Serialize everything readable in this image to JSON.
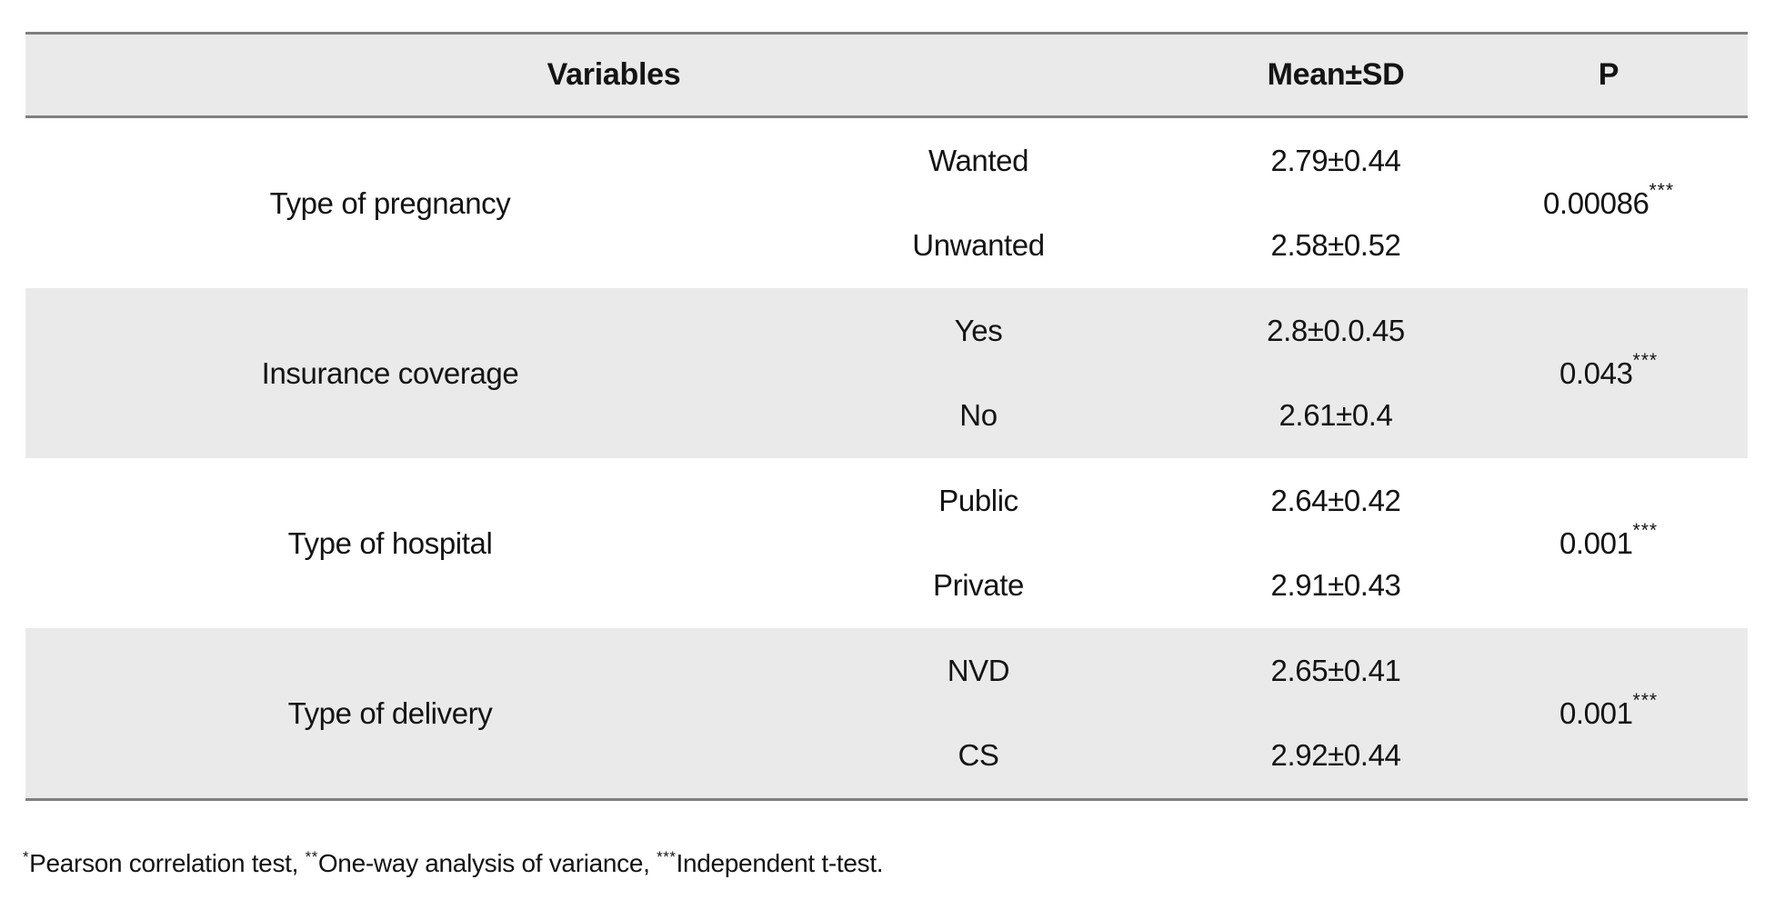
{
  "table": {
    "headers": {
      "variables": "Variables",
      "mean_sd": "Mean±SD",
      "p": "P"
    },
    "groups": [
      {
        "variable": "Type of pregnancy",
        "rows": [
          {
            "category": "Wanted",
            "mean_sd": "2.79±0.44"
          },
          {
            "category": "Unwanted",
            "mean_sd": "2.58±0.52"
          }
        ],
        "p_value": "0.00086",
        "p_sig": "***"
      },
      {
        "variable": "Insurance coverage",
        "rows": [
          {
            "category": "Yes",
            "mean_sd": "2.8±0.0.45"
          },
          {
            "category": "No",
            "mean_sd": "2.61±0.4"
          }
        ],
        "p_value": "0.043",
        "p_sig": "***"
      },
      {
        "variable": "Type of hospital",
        "rows": [
          {
            "category": "Public",
            "mean_sd": "2.64±0.42"
          },
          {
            "category": "Private",
            "mean_sd": "2.91±0.43"
          }
        ],
        "p_value": "0.001",
        "p_sig": "***"
      },
      {
        "variable": "Type of delivery",
        "rows": [
          {
            "category": "NVD",
            "mean_sd": "2.65±0.41"
          },
          {
            "category": "CS",
            "mean_sd": "2.92±0.44"
          }
        ],
        "p_value": "0.001",
        "p_sig": "***"
      }
    ]
  },
  "footnote": {
    "segments": [
      {
        "sup": "*",
        "text": "Pearson correlation test, "
      },
      {
        "sup": "**",
        "text": "One-way analysis of variance, "
      },
      {
        "sup": "***",
        "text": "Independent t-test."
      }
    ]
  },
  "colors": {
    "shaded_band": "#eaeaea",
    "rule": "#7f7f7f",
    "text": "#141414",
    "background": "#ffffff"
  }
}
